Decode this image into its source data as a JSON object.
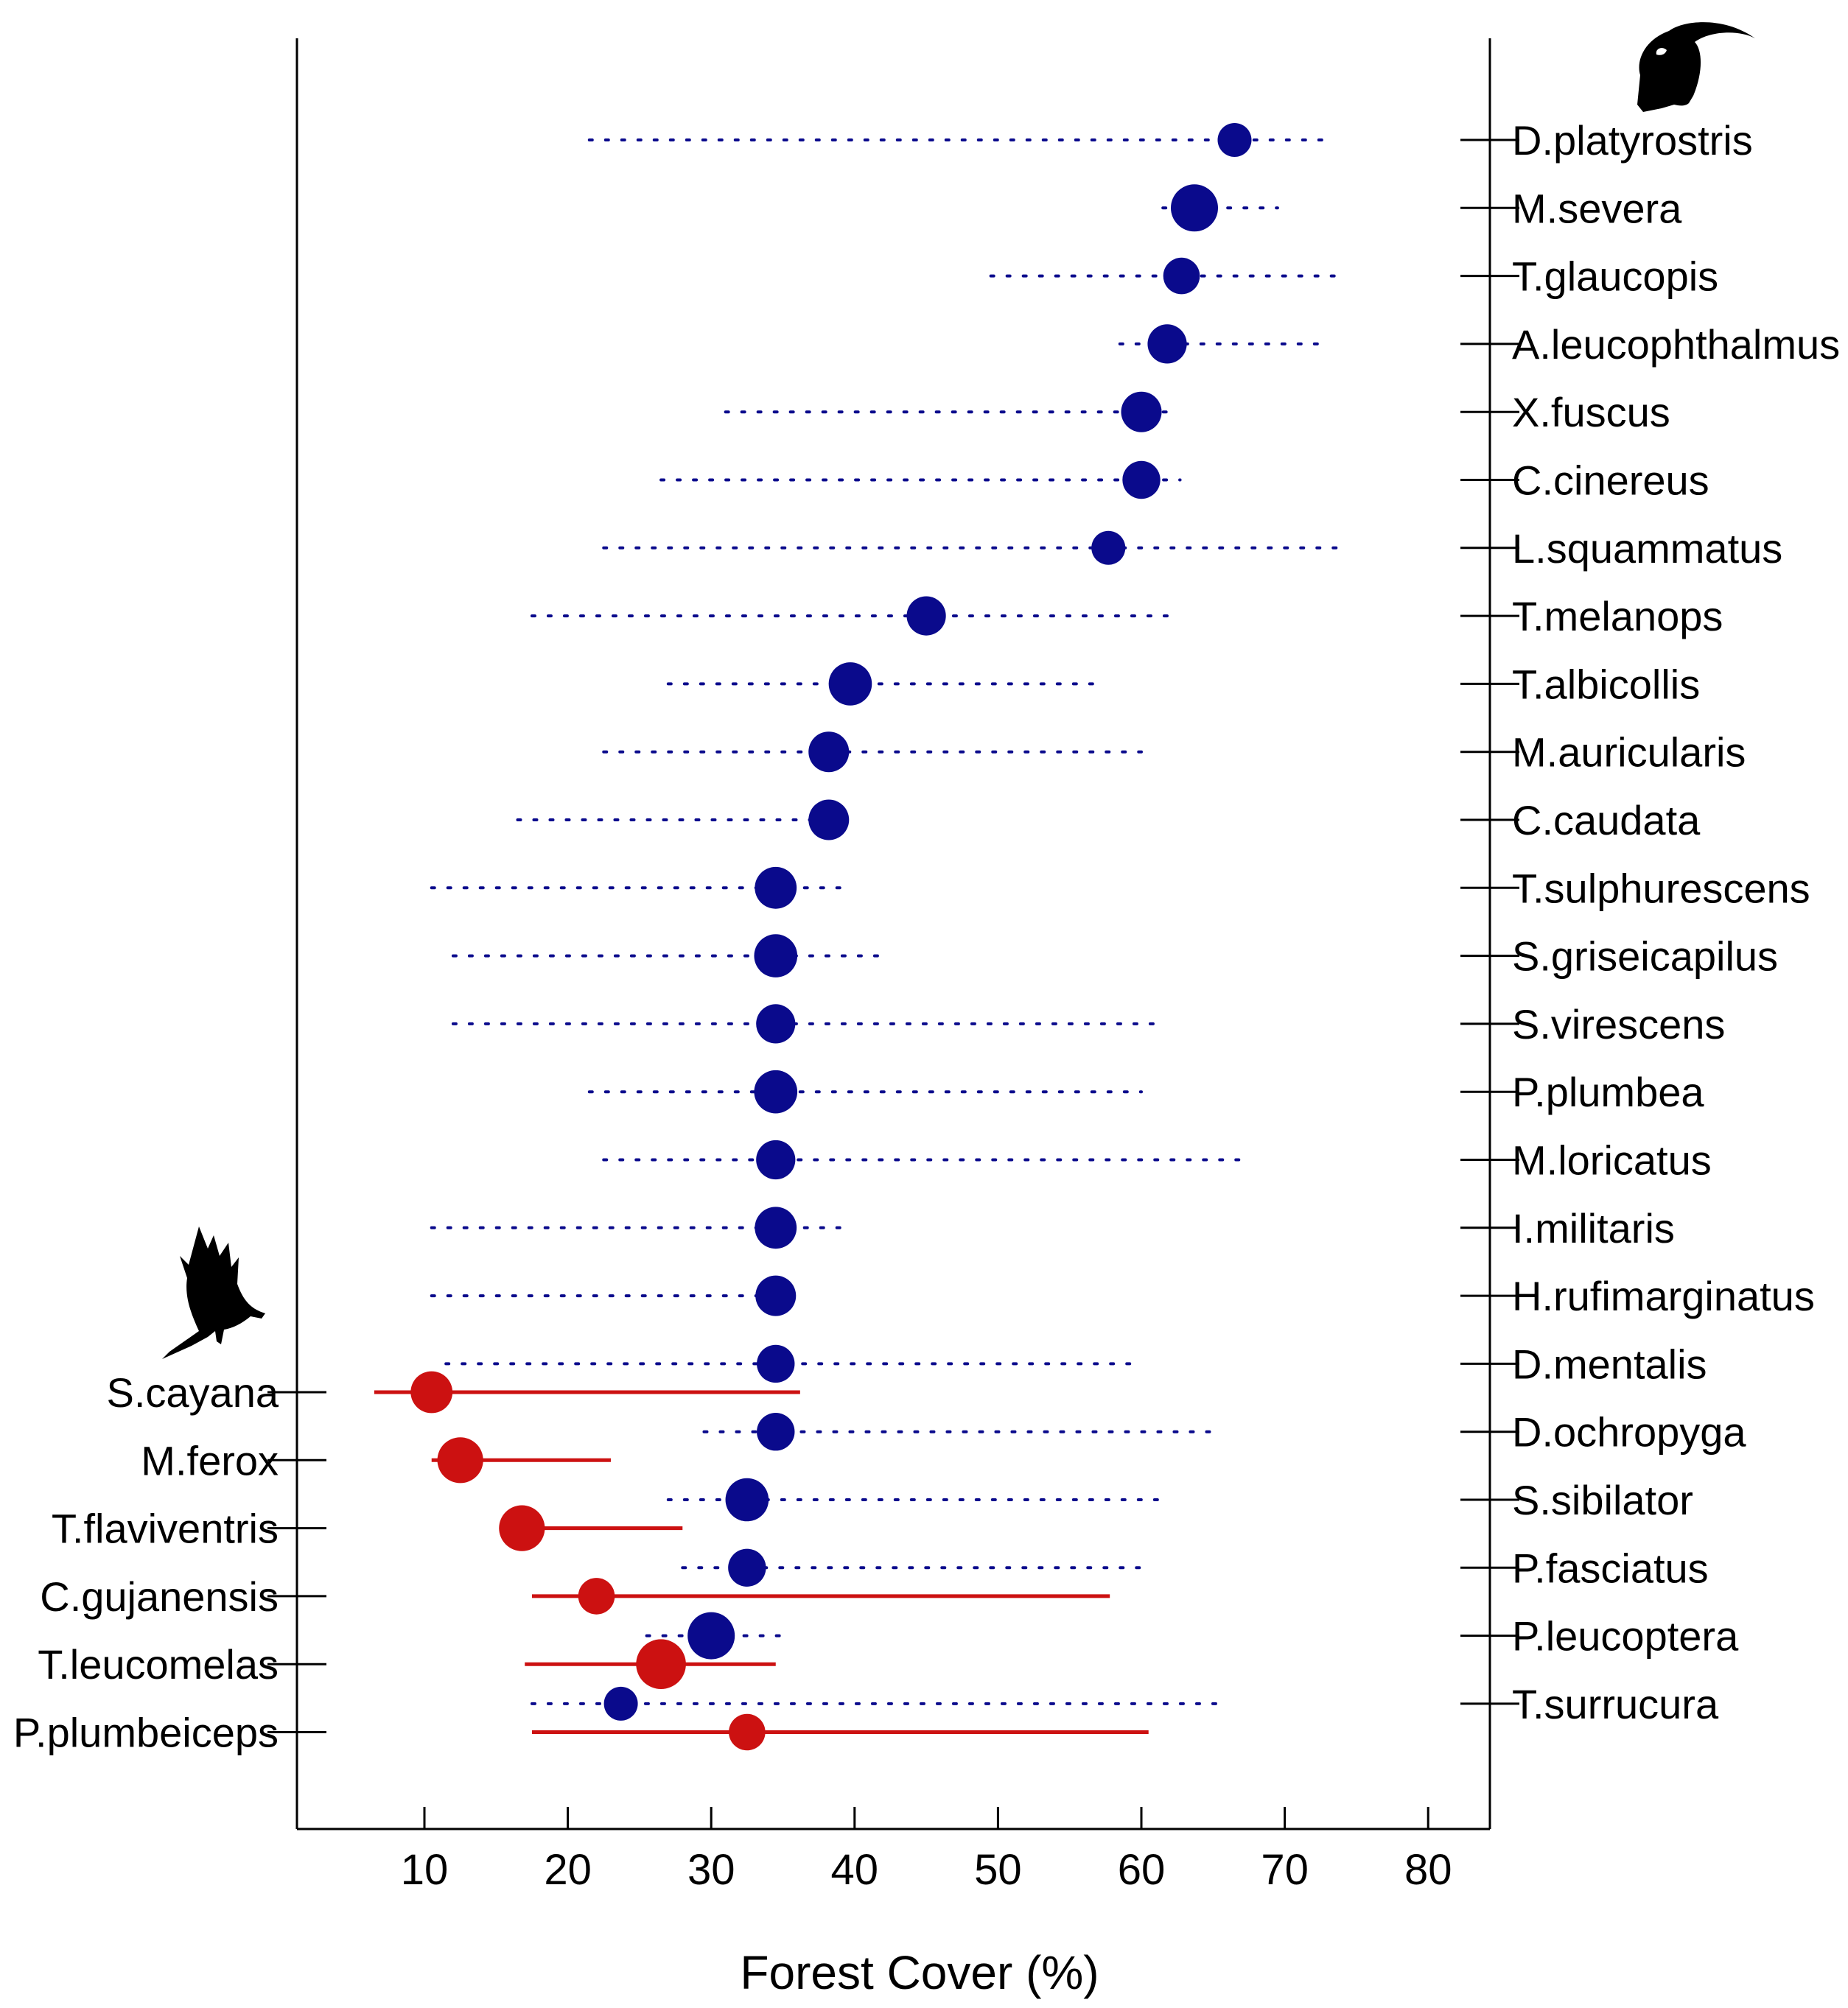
{
  "chart_data": {
    "type": "scatter",
    "title": "",
    "xlabel": "Forest Cover (%)",
    "ylabel": "",
    "xlim": [
      1,
      84
    ],
    "xticks": [
      10,
      20,
      30,
      40,
      50,
      60,
      70,
      80
    ],
    "grid": false,
    "colors": {
      "increasing": "#0a0a8c",
      "decreasing": "#cc1111",
      "axis": "#000000"
    },
    "icons": {
      "top_right": "toucan-silhouette-icon",
      "left": "raptor-silhouette-icon"
    },
    "series": [
      {
        "axis_side": "right",
        "line_style": "dotted",
        "color": "#0a0a8c",
        "species": [
          {
            "label": "D.platyrostris",
            "point": 66.5,
            "low": 21.5,
            "high": 73,
            "size": 0.5
          },
          {
            "label": "M.severa",
            "point": 63.7,
            "low": 61.5,
            "high": 69.5,
            "size": 1.0
          },
          {
            "label": "T.glaucopis",
            "point": 62.8,
            "low": 49.5,
            "high": 74,
            "size": 0.6
          },
          {
            "label": "A.leucophthalmus",
            "point": 61.8,
            "low": 58.5,
            "high": 73,
            "size": 0.7
          },
          {
            "label": "X.fuscus",
            "point": 60,
            "low": 31,
            "high": 62,
            "size": 0.75
          },
          {
            "label": "C.cinereus",
            "point": 60,
            "low": 26.5,
            "high": 62.7,
            "size": 0.65
          },
          {
            "label": "L.squammatus",
            "point": 57.7,
            "low": 22.5,
            "high": 74,
            "size": 0.5
          },
          {
            "label": "T.melanops",
            "point": 45,
            "low": 17.5,
            "high": 62.5,
            "size": 0.7
          },
          {
            "label": "T.albicollis",
            "point": 39.7,
            "low": 27,
            "high": 57.5,
            "size": 0.85
          },
          {
            "label": "M.auricularis",
            "point": 38.2,
            "low": 22.5,
            "high": 60,
            "size": 0.75
          },
          {
            "label": "C.caudata",
            "point": 38.2,
            "low": 16.5,
            "high": 40,
            "size": 0.75
          },
          {
            "label": "T.sulphurescens",
            "point": 34.5,
            "low": 10.5,
            "high": 39,
            "size": 0.8
          },
          {
            "label": "S.griseicapilus",
            "point": 34.5,
            "low": 12,
            "high": 42,
            "size": 0.85
          },
          {
            "label": "S.virescens",
            "point": 34.5,
            "low": 12,
            "high": 61.5,
            "size": 0.7
          },
          {
            "label": "P.plumbea",
            "point": 34.5,
            "low": 21.5,
            "high": 60,
            "size": 0.85
          },
          {
            "label": "M.loricatus",
            "point": 34.5,
            "low": 22.5,
            "high": 67.5,
            "size": 0.7
          },
          {
            "label": "I.militaris",
            "point": 34.5,
            "low": 10.5,
            "high": 39.5,
            "size": 0.8
          },
          {
            "label": "H.rufimarginatus",
            "point": 34.5,
            "low": 10.5,
            "high": 35.5,
            "size": 0.75
          },
          {
            "label": "D.mentalis",
            "point": 34.5,
            "low": 11.5,
            "high": 60,
            "size": 0.65
          },
          {
            "label": "D.ochropyga",
            "point": 34.5,
            "low": 29.5,
            "high": 65,
            "size": 0.65
          },
          {
            "label": "S.sibilator",
            "point": 32.5,
            "low": 27,
            "high": 61.5,
            "size": 0.85
          },
          {
            "label": "P.fasciatus",
            "point": 32.5,
            "low": 28,
            "high": 60,
            "size": 0.65
          },
          {
            "label": "P.leucoptera",
            "point": 30,
            "low": 25.5,
            "high": 35.5,
            "size": 1.0
          },
          {
            "label": "T.surrucura",
            "point": 23.7,
            "low": 17.5,
            "high": 66,
            "size": 0.5
          }
        ]
      },
      {
        "axis_side": "left",
        "line_style": "solid",
        "color": "#cc1111",
        "species": [
          {
            "label": "S.cayana",
            "point": 10.5,
            "low": 6.5,
            "high": 36.2,
            "size": 0.8
          },
          {
            "label": "M.ferox",
            "point": 12.5,
            "low": 10.5,
            "high": 23,
            "size": 0.95
          },
          {
            "label": "T.flaviventris",
            "point": 16.8,
            "low": 15.5,
            "high": 28,
            "size": 0.95
          },
          {
            "label": "C.gujanensis",
            "point": 22,
            "low": 17.5,
            "high": 57.8,
            "size": 0.6
          },
          {
            "label": "T.leucomelas",
            "point": 26.5,
            "low": 17,
            "high": 34.5,
            "size": 1.1
          },
          {
            "label": "P.plumbeiceps",
            "point": 32.5,
            "low": 17.5,
            "high": 60.5,
            "size": 0.6
          }
        ]
      }
    ]
  }
}
